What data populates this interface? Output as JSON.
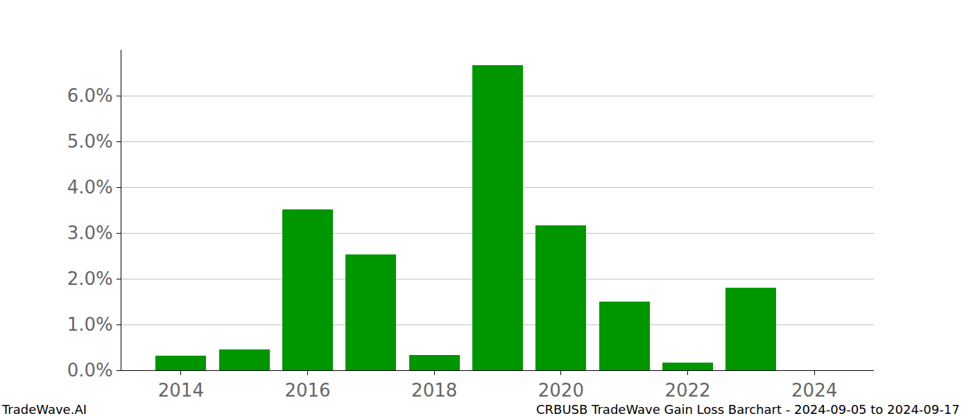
{
  "chart_data": {
    "type": "bar",
    "title": "CRBUSB TradeWave Gain Loss Barchart - 2024-09-05 to 2024-09-17",
    "annotations": [
      "TradeWave.AI"
    ],
    "x": [
      2014,
      2015,
      2016,
      2017,
      2018,
      2019,
      2020,
      2021,
      2022,
      2023,
      2024
    ],
    "values": [
      0.32,
      0.45,
      3.52,
      2.53,
      0.33,
      6.67,
      3.17,
      1.5,
      0.17,
      1.8,
      0
    ],
    "color": "#009600",
    "xlim": [
      2013.06,
      2024.94
    ],
    "xticks": [
      2014,
      2016,
      2018,
      2020,
      2022,
      2024
    ],
    "ylim": [
      0,
      7.0
    ],
    "yticks": [
      {
        "value": 0,
        "label": "0.0%"
      },
      {
        "value": 1,
        "label": "1.0%"
      },
      {
        "value": 2,
        "label": "2.0%"
      },
      {
        "value": 3,
        "label": "3.0%"
      },
      {
        "value": 4,
        "label": "4.0%"
      },
      {
        "value": 5,
        "label": "5.0%"
      },
      {
        "value": 6,
        "label": "6.0%"
      }
    ],
    "grid": true
  }
}
